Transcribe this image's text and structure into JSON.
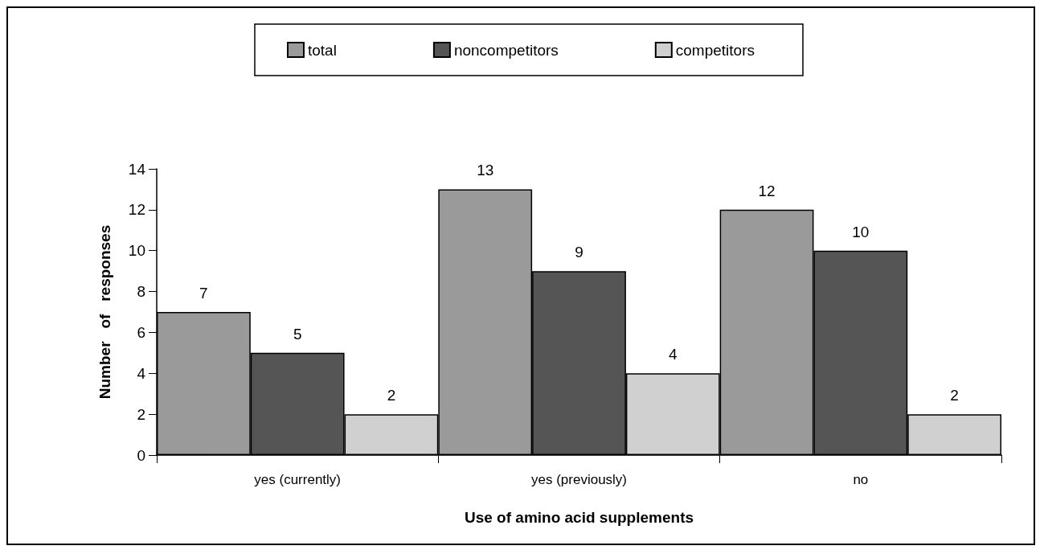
{
  "chart_data": {
    "type": "bar",
    "xlabel": "Use of amino acid supplements",
    "ylabel": "Number   of   responses",
    "categories": [
      "yes (currently)",
      "yes (previously)",
      "no"
    ],
    "series": [
      {
        "name": "total",
        "color": "#9a9a9a",
        "values": [
          7,
          13,
          12
        ]
      },
      {
        "name": "noncompetitors",
        "color": "#555555",
        "values": [
          5,
          9,
          10
        ]
      },
      {
        "name": "competitors",
        "color": "#d0d0d0",
        "values": [
          2,
          4,
          2
        ]
      }
    ],
    "ylim": [
      0,
      14
    ],
    "yticks": [
      0,
      2,
      4,
      6,
      8,
      10,
      12,
      14
    ],
    "grid": false,
    "legend": "top",
    "data_labels": true
  }
}
